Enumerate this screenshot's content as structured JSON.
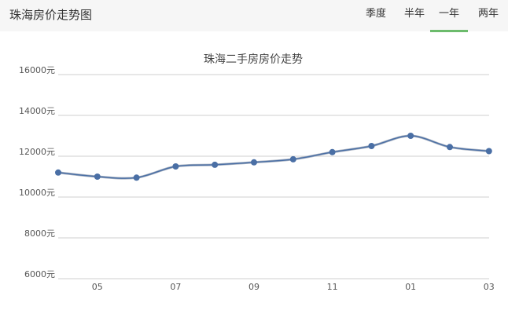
{
  "header": {
    "title": "珠海房价走势图",
    "tabs": [
      {
        "label": "季度",
        "active": false
      },
      {
        "label": "半年",
        "active": false
      },
      {
        "label": "一年",
        "active": true
      },
      {
        "label": "两年",
        "active": false
      }
    ],
    "active_tab_color": "#6cbb6c"
  },
  "chart_data": {
    "type": "line",
    "title": "珠海二手房房价走势",
    "xlabel": "",
    "ylabel": "",
    "ylim": [
      6000,
      16000
    ],
    "yticks": [
      6000,
      8000,
      10000,
      12000,
      14000,
      16000
    ],
    "ytick_suffix": "元",
    "x_tick_labels": [
      "05",
      "07",
      "09",
      "11",
      "01",
      "03"
    ],
    "grid": true,
    "line_color": "#4a6fa5",
    "series": [
      {
        "values": [
          11200,
          11000,
          10950,
          11500,
          11580,
          11700,
          11850,
          12200,
          12500,
          13000,
          12450,
          12250
        ]
      }
    ]
  }
}
